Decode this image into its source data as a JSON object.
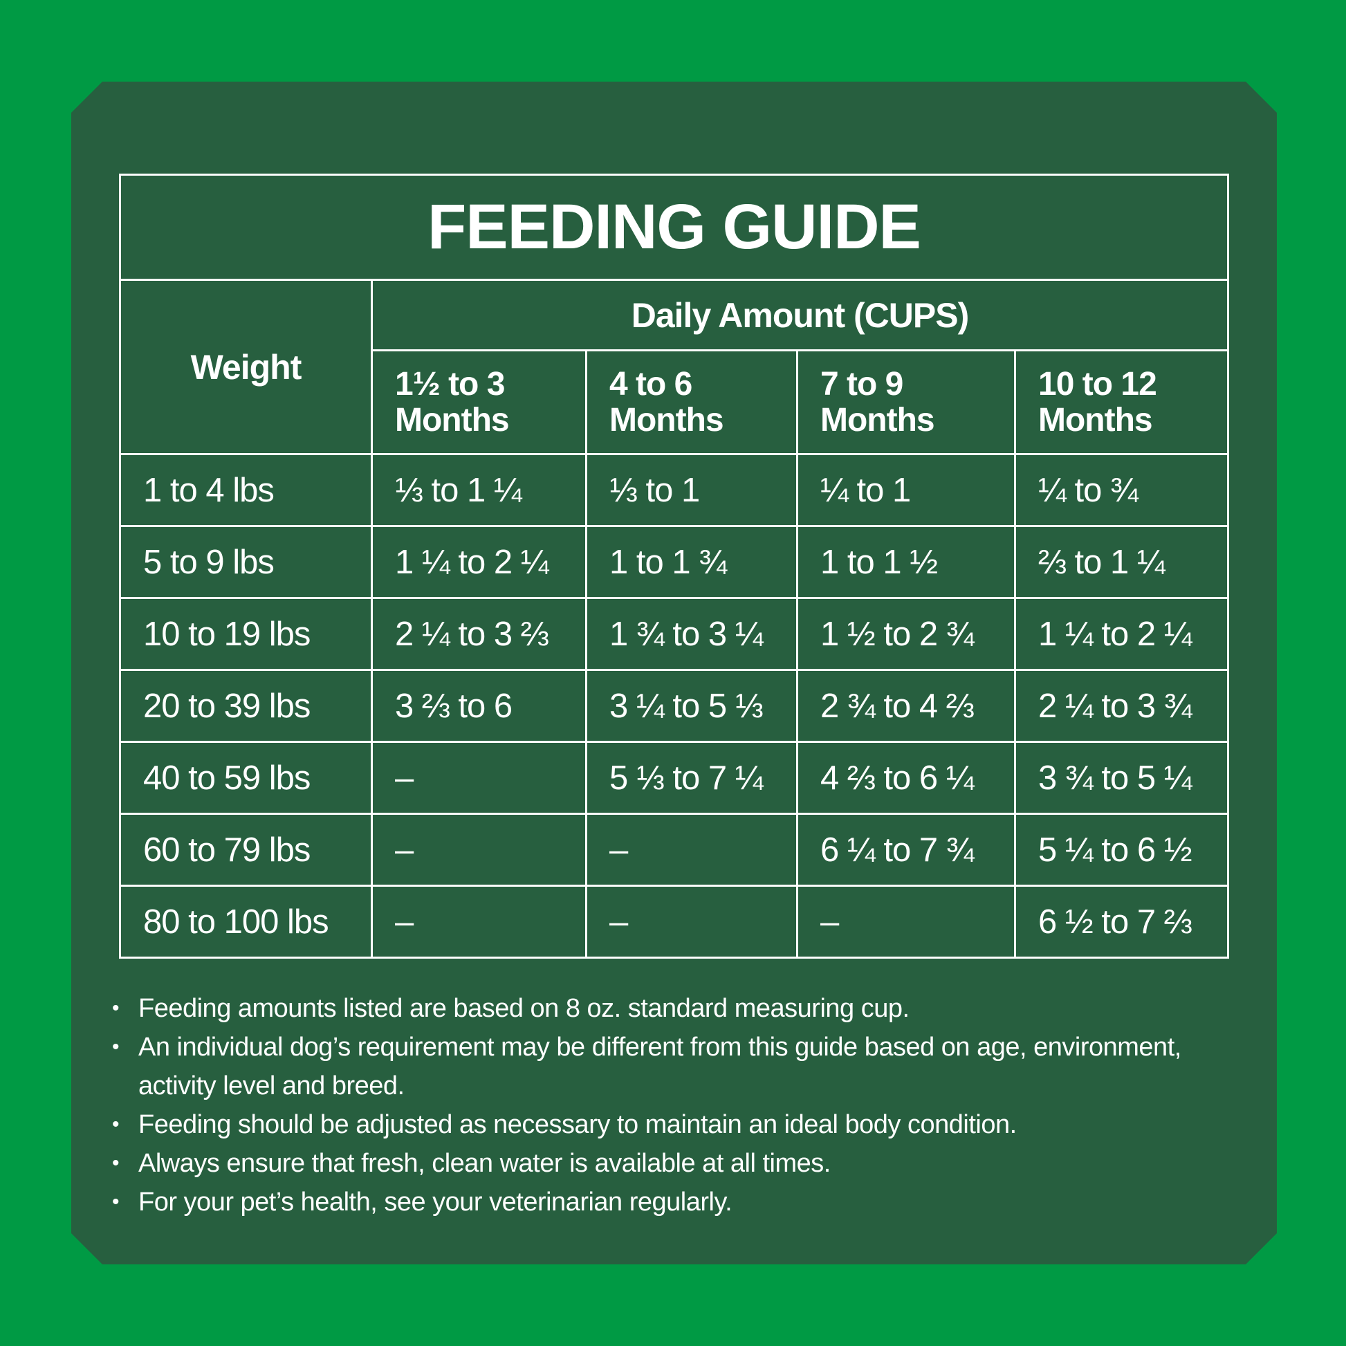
{
  "title": "FEEDING GUIDE",
  "headers": {
    "weight": "Weight",
    "daily_amount": "Daily Amount (CUPS)",
    "ages": [
      {
        "line1": "1½ to 3",
        "line2": "Months"
      },
      {
        "line1": "4 to 6",
        "line2": "Months"
      },
      {
        "line1": "7 to 9",
        "line2": "Months"
      },
      {
        "line1": "10 to 12",
        "line2": "Months"
      }
    ]
  },
  "rows": [
    {
      "weight": "1 to 4 lbs",
      "values": [
        "⅓ to 1 ¼",
        "⅓ to 1",
        "¼ to 1",
        "¼ to ¾"
      ]
    },
    {
      "weight": "5 to 9 lbs",
      "values": [
        "1 ¼ to 2 ¼",
        "1 to 1 ¾",
        "1 to 1 ½",
        "⅔ to 1 ¼"
      ]
    },
    {
      "weight": "10 to 19 lbs",
      "values": [
        "2 ¼ to 3 ⅔",
        "1 ¾ to 3 ¼",
        "1 ½ to 2 ¾",
        "1 ¼ to 2 ¼"
      ]
    },
    {
      "weight": "20 to 39 lbs",
      "values": [
        "3 ⅔ to 6",
        "3 ¼ to 5 ⅓",
        "2 ¾ to 4 ⅔",
        "2 ¼ to 3 ¾"
      ]
    },
    {
      "weight": "40 to 59 lbs",
      "values": [
        "–",
        "5 ⅓ to 7 ¼",
        "4 ⅔ to 6 ¼",
        "3 ¾ to 5 ¼"
      ]
    },
    {
      "weight": "60 to 79 lbs",
      "values": [
        "–",
        "–",
        "6 ¼ to 7 ¾",
        "5 ¼ to 6 ½"
      ]
    },
    {
      "weight": "80 to 100 lbs",
      "values": [
        "–",
        "–",
        "–",
        "6 ½ to 7 ⅔"
      ]
    }
  ],
  "notes": [
    "Feeding amounts listed are based on 8 oz. standard measuring cup.",
    "An individual dog’s requirement may be different from this guide based on age, environment, activity level and breed.",
    "Feeding should be adjusted as necessary to maintain an ideal body condition.",
    "Always ensure that fresh, clean water is available at all times.",
    "For your pet’s health, see your veterinarian regularly."
  ],
  "colors": {
    "background": "#009a44",
    "panel": "#275f3f",
    "text": "#ffffff"
  }
}
